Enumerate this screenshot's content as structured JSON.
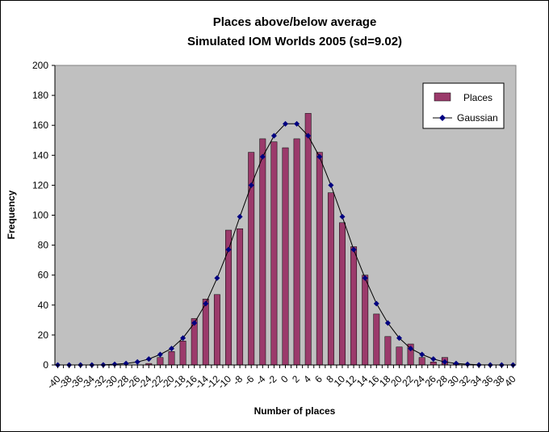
{
  "chart_data": {
    "type": "bar",
    "title": "Places above/below average",
    "subtitle": "Simulated IOM Worlds 2005 (sd=9.02)",
    "xlabel": "Number of places",
    "ylabel": "Frequency",
    "ylim": [
      0,
      200
    ],
    "yticks": [
      0,
      20,
      40,
      60,
      80,
      100,
      120,
      140,
      160,
      180,
      200
    ],
    "grid": false,
    "legend_position": "top-right",
    "categories": [
      -40,
      -39,
      -38,
      -37,
      -36,
      -35,
      -34,
      -33,
      -32,
      -31,
      -30,
      -29,
      -28,
      -27,
      -26,
      -25,
      -24,
      -23,
      -22,
      -21,
      -20,
      -19,
      -18,
      -17,
      -16,
      -15,
      -14,
      -13,
      -12,
      -11,
      -10,
      -9,
      -8,
      -7,
      -6,
      -5,
      -4,
      -3,
      -2,
      -1,
      0,
      1,
      2,
      3,
      4,
      5,
      6,
      7,
      8,
      9,
      10,
      11,
      12,
      13,
      14,
      15,
      16,
      17,
      18,
      19,
      20,
      21,
      22,
      23,
      24,
      25,
      26,
      27,
      28,
      29,
      30,
      31,
      32,
      33,
      34,
      35,
      36,
      37,
      38,
      39,
      40
    ],
    "tick_labels": [
      "-40",
      "-38",
      "-36",
      "-34",
      "-32",
      "-30",
      "-28",
      "-26",
      "-24",
      "-22",
      "-20",
      "-18",
      "-16",
      "-14",
      "-12",
      "-10",
      "-8",
      "-6",
      "-4",
      "-2",
      "0",
      "2",
      "4",
      "6",
      "8",
      "10",
      "12",
      "14",
      "16",
      "18",
      "20",
      "22",
      "24",
      "26",
      "28",
      "30",
      "32",
      "34",
      "36",
      "38",
      "40"
    ],
    "series": [
      {
        "name": "Places",
        "kind": "bar",
        "color": "#9b3a6b",
        "values": [
          0,
          0,
          0,
          0,
          0,
          0,
          0,
          0,
          0,
          0,
          0,
          0,
          0,
          0,
          0,
          0,
          1,
          0,
          5,
          0,
          9,
          0,
          16,
          0,
          31,
          0,
          44,
          0,
          47,
          0,
          90,
          0,
          91,
          0,
          142,
          0,
          151,
          0,
          149,
          0,
          145,
          0,
          151,
          0,
          168,
          0,
          142,
          0,
          115,
          0,
          95,
          0,
          79,
          0,
          60,
          0,
          34,
          0,
          19,
          0,
          12,
          0,
          14,
          0,
          5,
          0,
          2,
          0,
          5,
          0,
          1,
          0,
          0,
          0,
          0,
          0,
          0,
          0,
          0,
          0,
          0
        ]
      },
      {
        "name": "Gaussian",
        "kind": "line",
        "color": "#000080",
        "x": [
          -40,
          -38,
          -36,
          -34,
          -32,
          -30,
          -28,
          -26,
          -24,
          -22,
          -20,
          -18,
          -16,
          -14,
          -12,
          -10,
          -8,
          -6,
          -4,
          -2,
          0,
          2,
          4,
          6,
          8,
          10,
          12,
          14,
          16,
          18,
          20,
          22,
          24,
          26,
          28,
          30,
          32,
          34,
          36,
          38,
          40
        ],
        "values": [
          0,
          0,
          0,
          0,
          0.1,
          0.5,
          1,
          2,
          4,
          7,
          11,
          18,
          28,
          41,
          58,
          77,
          99,
          120,
          139,
          153,
          161,
          161,
          153,
          139,
          120,
          99,
          77,
          58,
          41,
          28,
          18,
          11,
          7,
          4,
          2,
          1,
          0.5,
          0.1,
          0,
          0,
          0
        ]
      }
    ]
  }
}
